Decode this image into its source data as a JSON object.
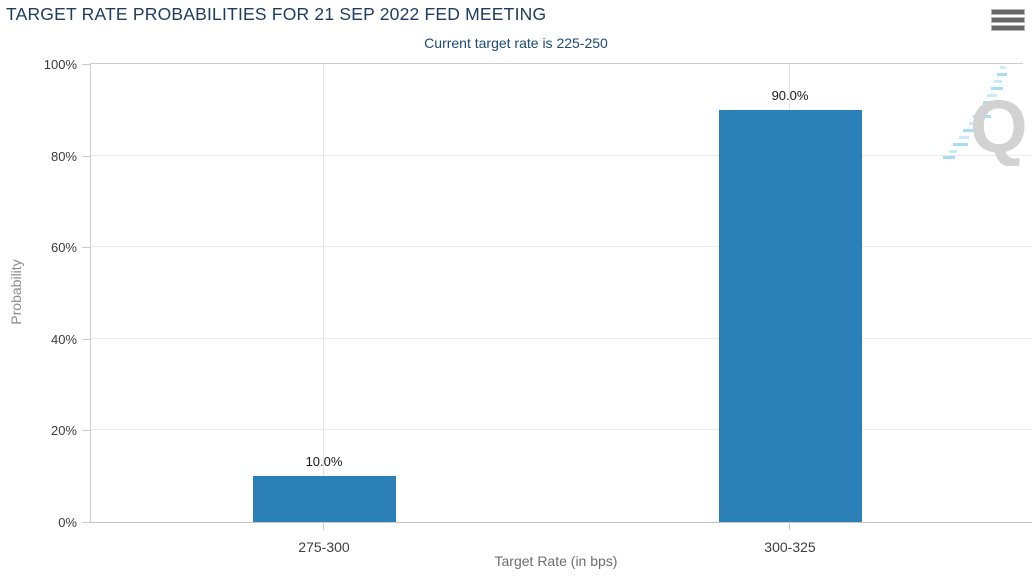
{
  "header": {
    "title": "TARGET RATE PROBABILITIES FOR 21 SEP 2022 FED MEETING",
    "subtitle": "Current target rate is 225-250"
  },
  "menu": {
    "icon": "hamburger-menu-icon"
  },
  "watermark": {
    "letter": "Q"
  },
  "chart_data": {
    "type": "bar",
    "title": "TARGET RATE PROBABILITIES FOR 21 SEP 2022 FED MEETING",
    "subtitle": "Current target rate is 225-250",
    "categories": [
      "275-300",
      "300-325"
    ],
    "values": [
      10.0,
      90.0
    ],
    "value_labels": [
      "10.0%",
      "90.0%"
    ],
    "xlabel": "Target Rate (in bps)",
    "ylabel": "Probability",
    "ylim": [
      0,
      100
    ],
    "y_ticks": [
      0,
      20,
      40,
      60,
      80,
      100
    ],
    "y_tick_labels": [
      "0%",
      "20%",
      "40%",
      "60%",
      "80%",
      "100%"
    ],
    "bar_color": "#2b80b8",
    "grid": true,
    "legend_position": "none"
  },
  "colors": {
    "title": "#1d3c63",
    "subtitle": "#1c4a74",
    "bar": "#2b80b8",
    "gridline": "#ebebeb",
    "axis": "#c6c6c6"
  }
}
